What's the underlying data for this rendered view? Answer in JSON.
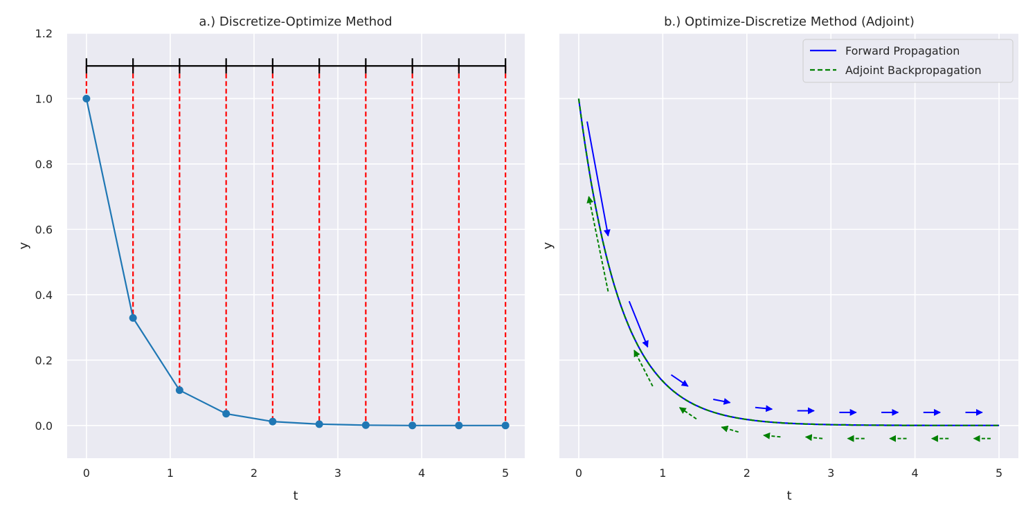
{
  "chart_data": [
    {
      "type": "line",
      "title": "a.) Discretize-Optimize Method",
      "xlabel": "t",
      "ylabel": "y",
      "xlim": [
        -0.23,
        5.23
      ],
      "ylim": [
        -0.1,
        1.2
      ],
      "xticks": [
        "0",
        "1",
        "2",
        "3",
        "4",
        "5"
      ],
      "yticks": [
        "0.0",
        "0.2",
        "0.4",
        "0.6",
        "0.8",
        "1.0",
        "1.2"
      ],
      "grid": true,
      "series": [
        {
          "x": [
            0,
            0.556,
            1.111,
            1.667,
            2.222,
            2.778,
            3.333,
            3.889,
            4.444,
            5.0
          ],
          "values": [
            1.0,
            0.329,
            0.108,
            0.036,
            0.012,
            0.004,
            0.001,
            0.0,
            0.0,
            0.0
          ],
          "color": "#1f77b4",
          "markers": true
        }
      ],
      "discretization_bar": {
        "y": 1.1,
        "color": "#000000"
      },
      "dashed_lines_color": "#ff0000"
    },
    {
      "type": "line",
      "title": "b.) Optimize-Discretize Method (Adjoint)",
      "xlabel": "t",
      "ylabel": "y",
      "xlim": [
        -0.23,
        5.23
      ],
      "ylim": [
        -0.1,
        1.2
      ],
      "xticks": [
        "0",
        "1",
        "2",
        "3",
        "4",
        "5"
      ],
      "grid": true,
      "legend_position": "top-right",
      "series": [
        {
          "name": "Forward Propagation",
          "color": "#0000ff",
          "style": "solid",
          "function": "exp(-2t)"
        },
        {
          "name": "Adjoint Backpropagation",
          "color": "#008000",
          "style": "dashed",
          "function": "exp(-2t)"
        }
      ],
      "forward_arrows": [
        {
          "from": [
            0.1,
            0.93
          ],
          "to": [
            0.35,
            0.58
          ]
        },
        {
          "from": [
            0.6,
            0.38
          ],
          "to": [
            0.82,
            0.24
          ]
        },
        {
          "from": [
            1.1,
            0.155
          ],
          "to": [
            1.3,
            0.12
          ]
        },
        {
          "from": [
            1.6,
            0.08
          ],
          "to": [
            1.8,
            0.07
          ]
        },
        {
          "from": [
            2.1,
            0.055
          ],
          "to": [
            2.3,
            0.05
          ]
        },
        {
          "from": [
            2.6,
            0.045
          ],
          "to": [
            2.8,
            0.045
          ]
        },
        {
          "from": [
            3.1,
            0.04
          ],
          "to": [
            3.3,
            0.04
          ]
        },
        {
          "from": [
            3.6,
            0.04
          ],
          "to": [
            3.8,
            0.04
          ]
        },
        {
          "from": [
            4.1,
            0.04
          ],
          "to": [
            4.3,
            0.04
          ]
        },
        {
          "from": [
            4.6,
            0.04
          ],
          "to": [
            4.8,
            0.04
          ]
        }
      ],
      "adjoint_arrows": [
        {
          "from": [
            0.35,
            0.41
          ],
          "to": [
            0.12,
            0.7
          ]
        },
        {
          "from": [
            0.88,
            0.12
          ],
          "to": [
            0.66,
            0.23
          ]
        },
        {
          "from": [
            1.4,
            0.02
          ],
          "to": [
            1.2,
            0.055
          ]
        },
        {
          "from": [
            1.9,
            -0.02
          ],
          "to": [
            1.7,
            -0.005
          ]
        },
        {
          "from": [
            2.4,
            -0.035
          ],
          "to": [
            2.2,
            -0.03
          ]
        },
        {
          "from": [
            2.9,
            -0.04
          ],
          "to": [
            2.7,
            -0.035
          ]
        },
        {
          "from": [
            3.4,
            -0.04
          ],
          "to": [
            3.2,
            -0.04
          ]
        },
        {
          "from": [
            3.9,
            -0.04
          ],
          "to": [
            3.7,
            -0.04
          ]
        },
        {
          "from": [
            4.4,
            -0.04
          ],
          "to": [
            4.2,
            -0.04
          ]
        },
        {
          "from": [
            4.9,
            -0.04
          ],
          "to": [
            4.7,
            -0.04
          ]
        }
      ]
    }
  ]
}
